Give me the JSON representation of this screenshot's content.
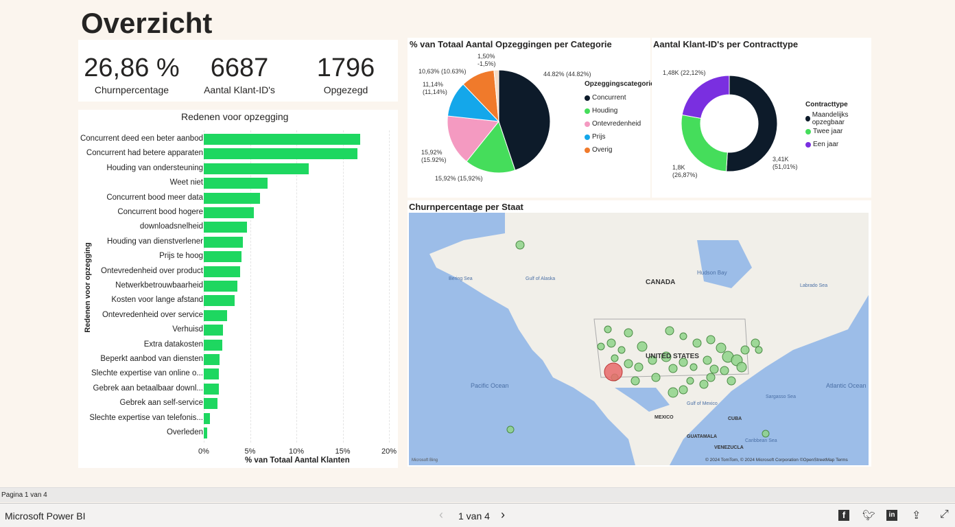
{
  "page_title": "Overzicht",
  "kpis": [
    {
      "value": "26,86 %",
      "label": "Churnpercentage"
    },
    {
      "value": "6687",
      "label": "Aantal Klant-ID's"
    },
    {
      "value": "1796",
      "label": "Opgezegd"
    }
  ],
  "bar_chart": {
    "title": "Redenen voor opzegging",
    "xlabel": "% van Totaal Aantal Klanten",
    "ylabel": "Redenen voor opzegging",
    "xticks": [
      "0%",
      "5%",
      "10%",
      "15%",
      "20%"
    ],
    "categories": [
      "Concurrent deed een beter aanbod",
      "Concurrent had betere apparaten",
      "Houding van ondersteuning",
      "Weet niet",
      "Concurrent bood meer data",
      "Concurrent bood hogere",
      "downloadsnelheid",
      "Houding van dienstverlener",
      "Prijs te hoog",
      "Ontevredenheid over product",
      "Netwerkbetrouwbaarheid",
      "Kosten voor lange afstand",
      "Ontevredenheid over service",
      "Verhuisd",
      "Extra datakosten",
      "Beperkt aanbod van diensten",
      "Slechte expertise van online o...",
      "Gebrek aan betaalbaar downl...",
      "Gebrek aan self-service",
      "Slechte expertise van telefonis...",
      "Overleden"
    ],
    "values": [
      16.9,
      16.6,
      11.3,
      6.9,
      6.1,
      5.4,
      4.7,
      4.2,
      4.1,
      3.9,
      3.6,
      3.3,
      2.5,
      2.1,
      2.0,
      1.7,
      1.6,
      1.6,
      1.5,
      0.7,
      0.4
    ],
    "xlim": [
      0,
      20
    ],
    "color": "#1ed760"
  },
  "chart_data": [
    {
      "type": "pie",
      "title": "% van Totaal Aantal Opzeggingen per Categorie",
      "legend_title": "Opzeggingscategorie",
      "slices": [
        {
          "name": "Concurrent",
          "value": 44.82,
          "label": "44.82% (44.82%)",
          "color": "#0d1b2a"
        },
        {
          "name": "Houding",
          "value": 15.92,
          "label": "15,92% (15,92%)",
          "color": "#45dd5b"
        },
        {
          "name": "Ontevredenheid",
          "value": 15.92,
          "label": "15,92% (15.92%)",
          "color": "#f49ac1"
        },
        {
          "name": "Prijs",
          "value": 11.14,
          "label": "11,14% (11,14%)",
          "color": "#14a7ea"
        },
        {
          "name": "Overig",
          "value": 10.63,
          "label": "10,63% (10.63%)",
          "color": "#f07a2b"
        },
        {
          "name": "",
          "value": 1.5,
          "label": "1,50% -1,5%)",
          "color": "#f5dcc6"
        }
      ],
      "legend": [
        "Concurrent",
        "Houding",
        "Ontevredenheid",
        "Prijs",
        "Overig"
      ]
    },
    {
      "type": "pie",
      "title": "Aantal Klant-ID's per Contracttype",
      "legend_title": "Contracttype",
      "slices": [
        {
          "name": "Maandelijks opzegbaar",
          "value": 51.01,
          "label": "3,41K (51,01%)",
          "color": "#0d1b2a"
        },
        {
          "name": "Twee jaar",
          "value": 26.87,
          "label": "1,8K (26,87%)",
          "color": "#45dd5b"
        },
        {
          "name": "Een jaar",
          "value": 22.12,
          "label": "1,48K (22,12%)",
          "color": "#7a2fe0"
        }
      ]
    }
  ],
  "map": {
    "title": "Churnpercentage per Staat",
    "labels": {
      "canada": "CANADA",
      "us": "UNITED STATES",
      "mexico": "MEXICO",
      "cuba": "CUBA",
      "guatemala": "GUATAMALA",
      "venezuela": "VENEZUCLA",
      "hudson": "Hudson Bay",
      "bering": "Bering Sea",
      "alaska": "Gulf of Alaska",
      "labrador": "Labrado Sea",
      "pacific": "Pacific Ocean",
      "atlantic": "Atlantic Ocean",
      "gulf": "Gulf of Mexico",
      "caribbean": "Caribbean Sea",
      "sargasso": "Sargasso Sea"
    },
    "attribution": "© 2024 TomTom, © 2024 Microsoft Corporation ©OpenStreetMap Terms",
    "logo": "Microsoft Bing"
  },
  "status": "Pagina 1 van 4",
  "footer": {
    "brand": "Microsoft Power BI",
    "pager": "1 van 4"
  }
}
